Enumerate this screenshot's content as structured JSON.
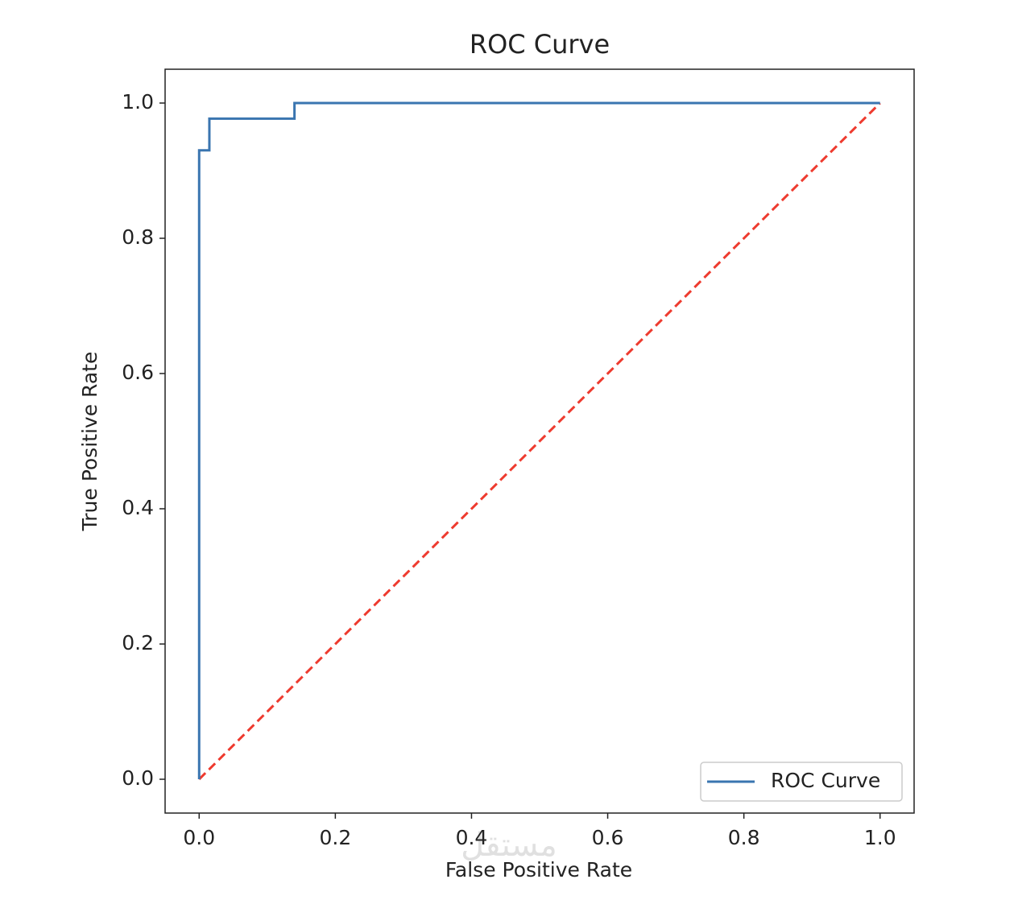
{
  "chart_data": {
    "type": "line",
    "title": "ROC Curve",
    "x_label": "False Positive Rate",
    "y_label": "True Positive Rate",
    "series": [
      {
        "name": "ROC Curve",
        "color": "#3a75b0",
        "x": [
          0,
          0,
          0.015,
          0.015,
          0.14,
          0.14,
          1
        ],
        "values": [
          0,
          0.93,
          0.93,
          0.977,
          0.977,
          1,
          1
        ]
      }
    ],
    "reference_line": {
      "x": [
        0,
        1
      ],
      "values": [
        0,
        1
      ],
      "color": "#ee3b2f",
      "style": "dashed"
    },
    "xlim": [
      -0.05,
      1.05
    ],
    "ylim": [
      -0.05,
      1.05
    ],
    "xticks": [
      {
        "value": 0,
        "label": "0.0"
      },
      0.2,
      0.4,
      0.6,
      0.8,
      {
        "value": 1,
        "label": "1.0"
      }
    ],
    "yticks": [
      {
        "value": 0,
        "label": "0.0"
      },
      0.2,
      0.4,
      0.6,
      0.8,
      {
        "value": 1,
        "label": "1.0"
      }
    ],
    "grid": false,
    "legend_position": "lower right",
    "watermark": "مستقل"
  }
}
